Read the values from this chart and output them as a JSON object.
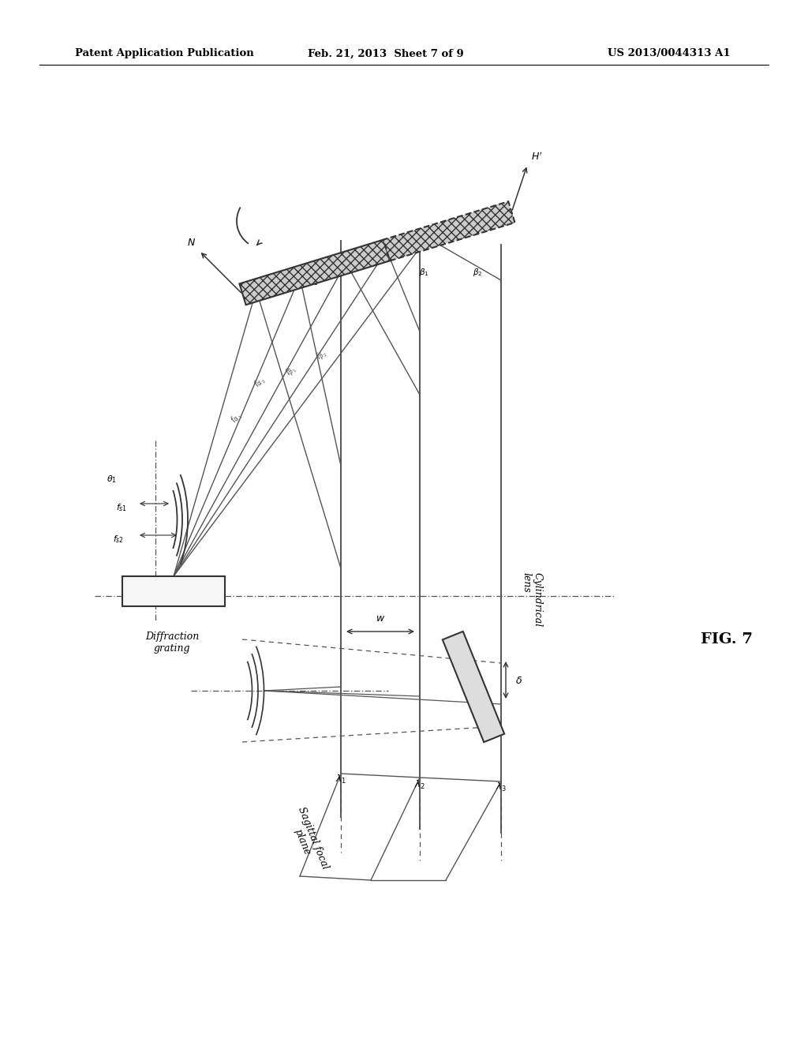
{
  "bg_color": "#ffffff",
  "line_color": "#555555",
  "dark_color": "#333333",
  "header_left": "Patent Application Publication",
  "header_center": "Feb. 21, 2013  Sheet 7 of 9",
  "header_right": "US 2013/0044313 A1",
  "fig_label": "FIG. 7",
  "label_diffraction_grating": "Diffraction\ngrating",
  "label_cylindrical_lens": "Cylindrical\nlens",
  "label_sagittal_focal": "Sagittal focal\nplane"
}
